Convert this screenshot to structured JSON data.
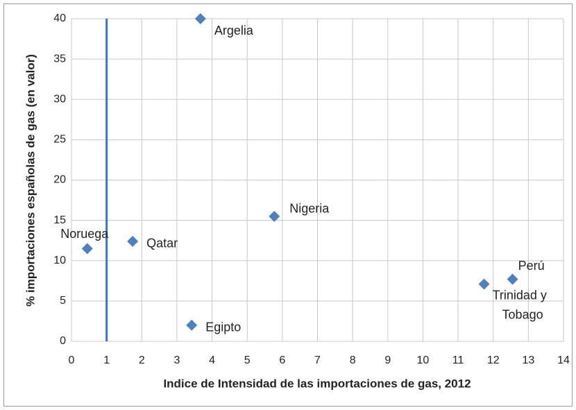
{
  "chart_data": {
    "type": "scatter",
    "xlabel": "Indice de Intensidad de las importaciones de gas, 2012",
    "ylabel": "% importaciones españolas de gas (en valor)",
    "labels": [
      "Argelia",
      "Nigeria",
      "Qatar",
      "Noruega",
      "Egipto",
      "Trinidad y\nTobago",
      "Perú"
    ],
    "x": [
      3.67,
      5.77,
      1.74,
      0.45,
      3.42,
      11.74,
      12.55
    ],
    "values": [
      40,
      15.5,
      12.4,
      11.5,
      2.0,
      7.1,
      7.7
    ],
    "color": "#4f81bd",
    "reference_line": {
      "x": 1,
      "color": "#3d74c4"
    },
    "xlim": [
      0,
      14
    ],
    "ylim": [
      0,
      40
    ],
    "xticks": [
      0,
      1,
      2,
      3,
      4,
      5,
      6,
      7,
      8,
      9,
      10,
      11,
      12,
      13,
      14
    ],
    "yticks": [
      0,
      5,
      10,
      15,
      20,
      25,
      30,
      35,
      40
    ],
    "grid": true
  }
}
